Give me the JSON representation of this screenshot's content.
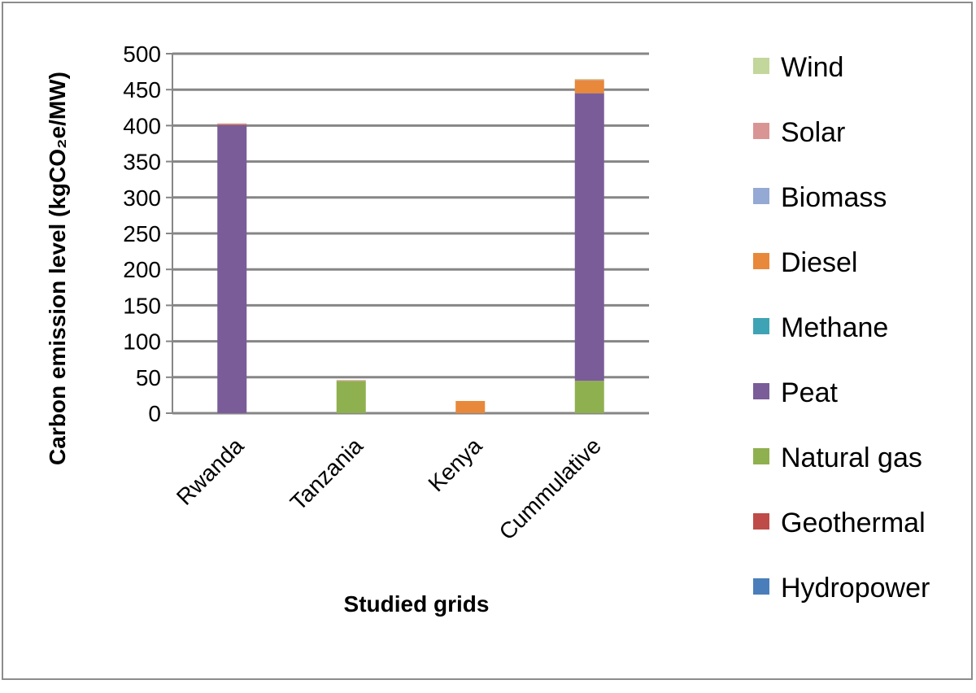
{
  "chart_data": {
    "type": "bar",
    "stacked": true,
    "categories": [
      "Rwanda",
      "Tanzania",
      "Kenya",
      "Cummulative"
    ],
    "xlabel": "Studied grids",
    "ylabel": "Carbon emission  level (kgCO₂e/MW)",
    "ylim": [
      0,
      500
    ],
    "yticks": [
      0,
      50,
      100,
      150,
      200,
      250,
      300,
      350,
      400,
      450,
      500
    ],
    "grid": true,
    "legend_position": "right",
    "series": [
      {
        "name": "Hydropower",
        "color": "#4a7ebb",
        "values": [
          0,
          0,
          0,
          0
        ]
      },
      {
        "name": "Geothermal",
        "color": "#be4b48",
        "values": [
          0,
          0,
          0,
          0
        ]
      },
      {
        "name": "Natural gas",
        "color": "#8fb04f",
        "values": [
          0,
          45,
          0,
          45
        ]
      },
      {
        "name": "Peat",
        "color": "#7a5c99",
        "values": [
          401,
          0,
          0,
          400
        ]
      },
      {
        "name": "Methane",
        "color": "#3ea4b5",
        "values": [
          0,
          0,
          0,
          0
        ]
      },
      {
        "name": "Diesel",
        "color": "#e8883a",
        "values": [
          1,
          0,
          17,
          18
        ]
      },
      {
        "name": "Biomass",
        "color": "#94a9d3",
        "values": [
          0,
          0,
          0,
          0
        ]
      },
      {
        "name": "Solar",
        "color": "#d99594",
        "values": [
          1,
          1,
          0,
          1
        ]
      },
      {
        "name": "Wind",
        "color": "#c3d69b",
        "values": [
          0,
          0,
          0,
          1
        ]
      }
    ]
  }
}
